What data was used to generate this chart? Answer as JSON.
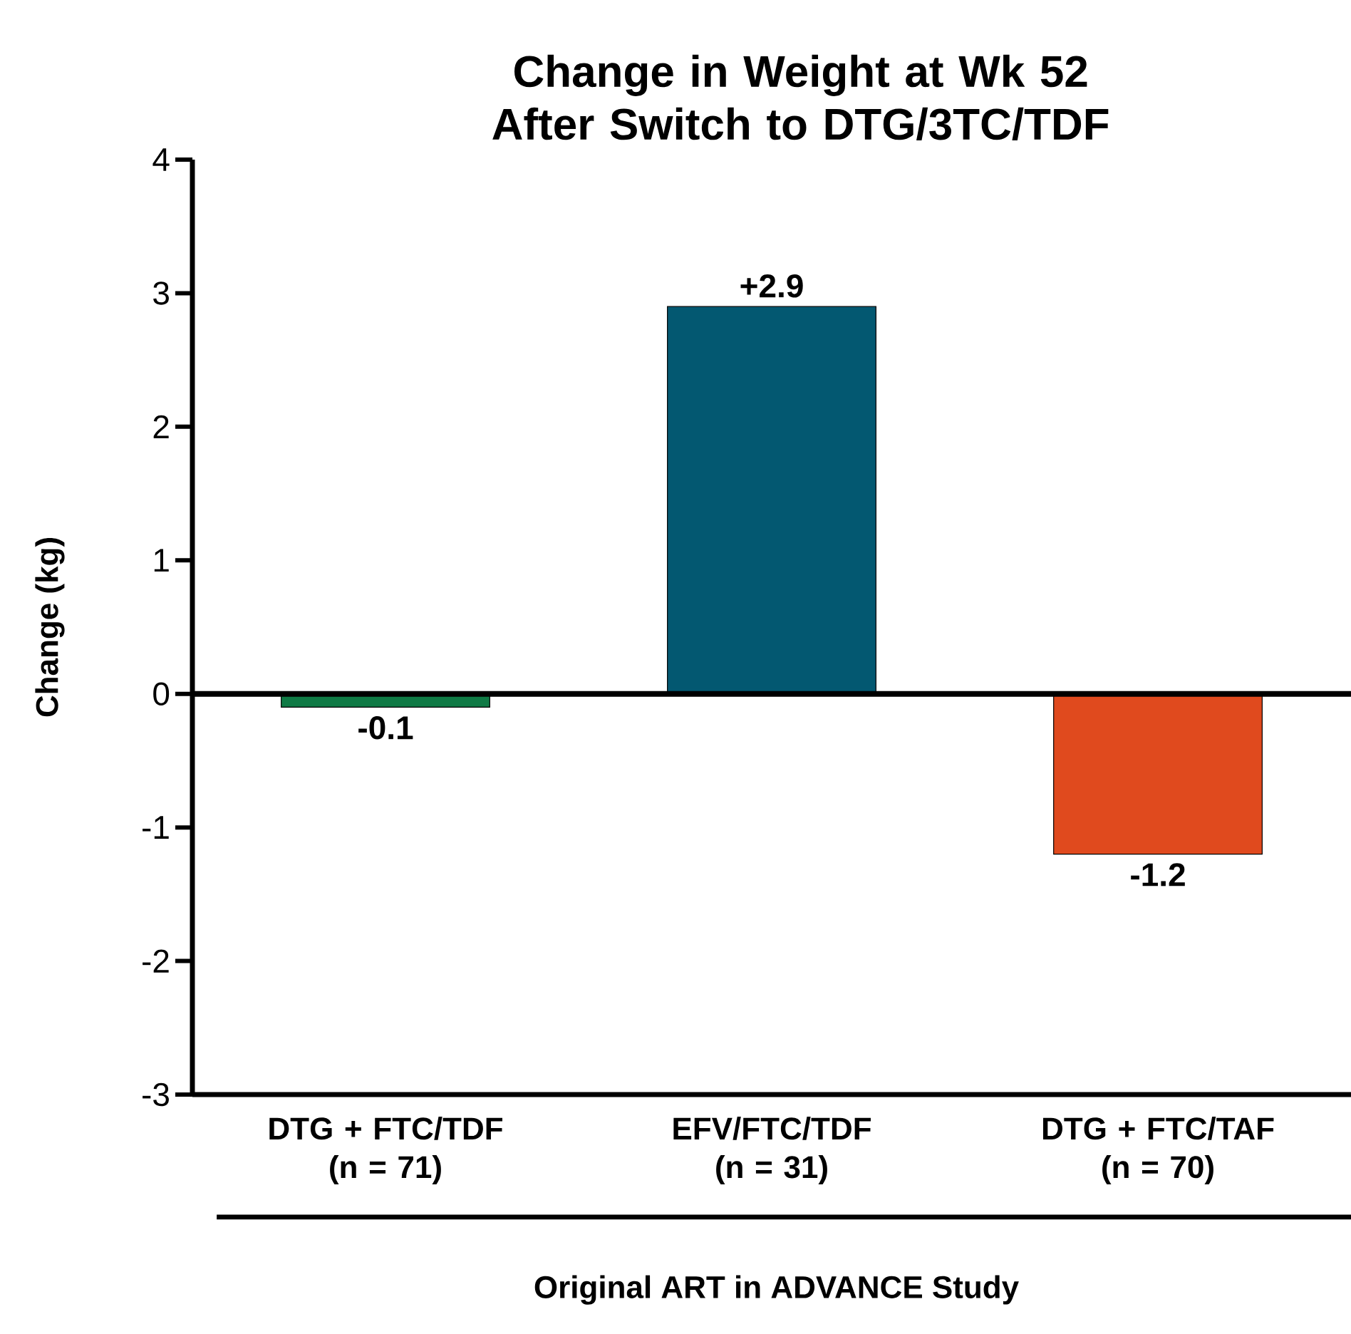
{
  "chart_data": {
    "type": "bar",
    "title": "Change in Weight at Wk 52 After Switch to DTG/3TC/TDF",
    "xlabel": "Original ART in ADVANCE Study",
    "ylabel": "Change (kg)",
    "categories": [
      "DTG + FTC/TDF (n = 71)",
      "EFV/FTC/TDF (n = 31)",
      "DTG + FTC/TAF (n = 70)"
    ],
    "values": [
      -0.1,
      2.9,
      -1.2
    ],
    "colors": [
      "#0f7a45",
      "#035871",
      "#e04a1e"
    ],
    "value_labels": [
      "-0.1",
      "+2.9",
      "-1.2"
    ],
    "ylim": [
      -3,
      4
    ],
    "yticks": [
      -3,
      -2,
      -1,
      0,
      1,
      2,
      3,
      4
    ],
    "ref_lines": [
      {
        "axis": "y",
        "value": 0
      }
    ],
    "grid": false
  }
}
